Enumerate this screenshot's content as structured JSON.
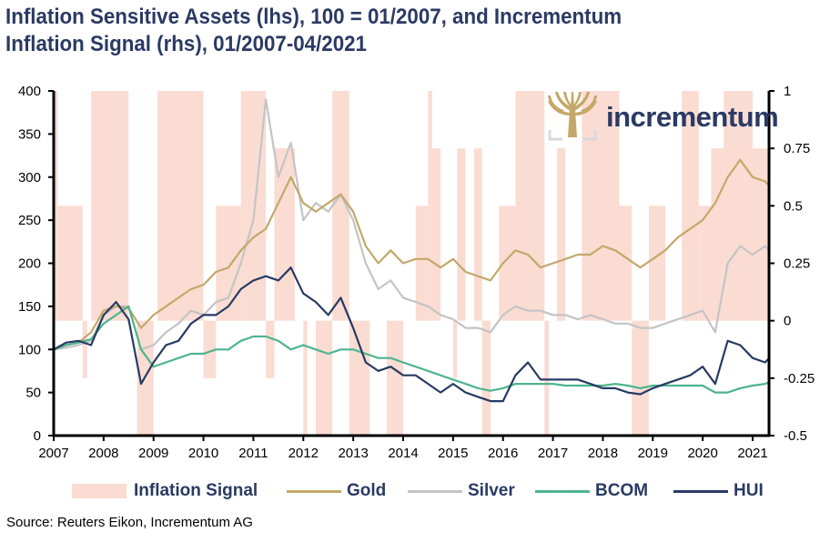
{
  "title_line1": "Inflation Sensitive Assets (lhs), 100 = 01/2007, and Incrementum",
  "title_line2": "Inflation Signal (rhs), 01/2007-04/2021",
  "logo": {
    "text": "incrementum",
    "icon": "tree-icon"
  },
  "source": "Source: Reuters Eikon, Incrementum AG",
  "colors": {
    "signal": "#fadcd3",
    "gold": "#c3a86a",
    "silver": "#c4c4c4",
    "bcom": "#4fb48e",
    "hui": "#283a64",
    "axis": "#000000"
  },
  "legend": [
    {
      "label": "Inflation Signal",
      "type": "area",
      "color": "#fadcd3"
    },
    {
      "label": "Gold",
      "type": "line",
      "color": "#c3a86a"
    },
    {
      "label": "Silver",
      "type": "line",
      "color": "#c4c4c4"
    },
    {
      "label": "BCOM",
      "type": "line",
      "color": "#4fb48e"
    },
    {
      "label": "HUI",
      "type": "line",
      "color": "#283a64"
    }
  ],
  "chart_data": {
    "type": "line",
    "title": "Inflation Sensitive Assets (lhs), 100 = 01/2007, and Incrementum Inflation Signal (rhs), 01/2007-04/2021",
    "xlabel": "",
    "ylabel_left": "",
    "ylabel_right": "",
    "x_ticks": [
      "2007",
      "2008",
      "2009",
      "2010",
      "2011",
      "2012",
      "2013",
      "2014",
      "2015",
      "2016",
      "2017",
      "2018",
      "2019",
      "2020",
      "2021"
    ],
    "xlim": [
      2007.0,
      2021.33
    ],
    "y_left": {
      "ylim": [
        0,
        400
      ],
      "ticks": [
        "0",
        "50",
        "100",
        "150",
        "200",
        "250",
        "300",
        "350",
        "400"
      ]
    },
    "y_right": {
      "ylim": [
        -0.5,
        1
      ],
      "ticks": [
        "-0.5",
        "-0.25",
        "0",
        "0.25",
        "0.5",
        "0.75",
        "1"
      ]
    },
    "grid": false,
    "legend_position": "bottom",
    "inflation_signal": {
      "axis": "right",
      "note": "step values by period [start, end, value]",
      "steps": [
        [
          2007.0,
          2007.08,
          1.0
        ],
        [
          2007.08,
          2007.58,
          0.5
        ],
        [
          2007.58,
          2007.67,
          -0.25
        ],
        [
          2007.67,
          2007.75,
          0.0
        ],
        [
          2007.75,
          2008.5,
          1.0
        ],
        [
          2008.5,
          2008.67,
          0.0
        ],
        [
          2008.67,
          2009.0,
          -0.5
        ],
        [
          2009.0,
          2009.08,
          0.0
        ],
        [
          2009.08,
          2010.0,
          1.0
        ],
        [
          2010.0,
          2010.08,
          -0.25
        ],
        [
          2010.08,
          2010.25,
          -0.25
        ],
        [
          2010.25,
          2010.75,
          0.5
        ],
        [
          2010.75,
          2011.25,
          1.0
        ],
        [
          2011.25,
          2011.42,
          -0.25
        ],
        [
          2011.42,
          2011.83,
          0.75
        ],
        [
          2011.83,
          2012.0,
          0.0
        ],
        [
          2012.0,
          2012.08,
          -0.5
        ],
        [
          2012.08,
          2012.25,
          0.0
        ],
        [
          2012.25,
          2012.58,
          -0.5
        ],
        [
          2012.58,
          2012.92,
          1.0
        ],
        [
          2012.92,
          2013.33,
          -0.5
        ],
        [
          2013.33,
          2013.67,
          0.0
        ],
        [
          2013.67,
          2014.0,
          -0.5
        ],
        [
          2014.0,
          2014.25,
          0.0
        ],
        [
          2014.25,
          2014.5,
          0.5
        ],
        [
          2014.5,
          2014.58,
          1.0
        ],
        [
          2014.58,
          2014.75,
          0.75
        ],
        [
          2014.75,
          2015.0,
          0.0
        ],
        [
          2015.0,
          2015.08,
          -0.25
        ],
        [
          2015.08,
          2015.25,
          0.75
        ],
        [
          2015.25,
          2015.42,
          0.0
        ],
        [
          2015.42,
          2015.58,
          0.75
        ],
        [
          2015.58,
          2015.75,
          -0.5
        ],
        [
          2015.75,
          2015.92,
          0.0
        ],
        [
          2015.92,
          2016.25,
          0.5
        ],
        [
          2016.25,
          2016.83,
          1.0
        ],
        [
          2016.83,
          2016.92,
          -0.5
        ],
        [
          2016.92,
          2017.08,
          0.0
        ],
        [
          2017.08,
          2017.25,
          0.75
        ],
        [
          2017.25,
          2017.58,
          0.0
        ],
        [
          2017.58,
          2018.33,
          1.0
        ],
        [
          2018.33,
          2018.58,
          0.5
        ],
        [
          2018.58,
          2018.92,
          -0.5
        ],
        [
          2018.92,
          2019.25,
          0.5
        ],
        [
          2019.25,
          2019.58,
          0.0
        ],
        [
          2019.58,
          2019.92,
          1.0
        ],
        [
          2019.92,
          2020.17,
          0.5
        ],
        [
          2020.17,
          2020.42,
          0.75
        ],
        [
          2020.42,
          2021.0,
          1.0
        ],
        [
          2021.0,
          2021.33,
          0.75
        ]
      ]
    },
    "x": [
      2007.0,
      2007.25,
      2007.5,
      2007.75,
      2008.0,
      2008.25,
      2008.5,
      2008.75,
      2009.0,
      2009.25,
      2009.5,
      2009.75,
      2010.0,
      2010.25,
      2010.5,
      2010.75,
      2011.0,
      2011.25,
      2011.5,
      2011.75,
      2012.0,
      2012.25,
      2012.5,
      2012.75,
      2013.0,
      2013.25,
      2013.5,
      2013.75,
      2014.0,
      2014.25,
      2014.5,
      2014.75,
      2015.0,
      2015.25,
      2015.5,
      2015.75,
      2016.0,
      2016.25,
      2016.5,
      2016.75,
      2017.0,
      2017.25,
      2017.5,
      2017.75,
      2018.0,
      2018.25,
      2018.5,
      2018.75,
      2019.0,
      2019.25,
      2019.5,
      2019.75,
      2020.0,
      2020.25,
      2020.5,
      2020.75,
      2021.0,
      2021.25,
      2021.33
    ],
    "series": [
      {
        "name": "Gold",
        "axis": "left",
        "values": [
          100,
          105,
          108,
          120,
          145,
          150,
          148,
          125,
          140,
          150,
          160,
          170,
          175,
          190,
          195,
          215,
          230,
          240,
          270,
          300,
          270,
          260,
          270,
          280,
          260,
          220,
          200,
          215,
          200,
          205,
          205,
          195,
          205,
          190,
          185,
          180,
          200,
          215,
          210,
          195,
          200,
          205,
          210,
          210,
          220,
          215,
          205,
          195,
          205,
          215,
          230,
          240,
          250,
          270,
          300,
          320,
          300,
          295,
          290
        ]
      },
      {
        "name": "Silver",
        "axis": "left",
        "values": [
          100,
          102,
          105,
          110,
          140,
          150,
          150,
          100,
          105,
          120,
          130,
          145,
          140,
          155,
          160,
          200,
          250,
          390,
          300,
          340,
          250,
          270,
          260,
          280,
          250,
          200,
          170,
          180,
          160,
          155,
          150,
          140,
          135,
          125,
          125,
          120,
          140,
          150,
          145,
          145,
          140,
          140,
          135,
          140,
          135,
          130,
          130,
          125,
          125,
          130,
          135,
          140,
          145,
          120,
          200,
          220,
          210,
          220,
          215
        ]
      },
      {
        "name": "BCOM",
        "axis": "left",
        "values": [
          100,
          105,
          108,
          112,
          130,
          140,
          150,
          100,
          80,
          85,
          90,
          95,
          95,
          100,
          100,
          110,
          115,
          115,
          110,
          100,
          105,
          100,
          95,
          100,
          100,
          95,
          90,
          90,
          85,
          80,
          75,
          70,
          65,
          60,
          55,
          52,
          55,
          60,
          60,
          60,
          60,
          58,
          58,
          58,
          58,
          60,
          58,
          55,
          58,
          58,
          58,
          58,
          58,
          50,
          50,
          55,
          58,
          60,
          62
        ]
      },
      {
        "name": "HUI",
        "axis": "left",
        "values": [
          100,
          108,
          110,
          105,
          140,
          155,
          135,
          60,
          85,
          105,
          110,
          130,
          140,
          140,
          150,
          170,
          180,
          185,
          180,
          195,
          165,
          155,
          140,
          160,
          125,
          85,
          75,
          80,
          70,
          70,
          60,
          50,
          60,
          50,
          45,
          40,
          40,
          70,
          85,
          65,
          65,
          65,
          65,
          60,
          55,
          55,
          50,
          48,
          55,
          60,
          65,
          70,
          80,
          60,
          110,
          105,
          90,
          85,
          90
        ]
      }
    ]
  }
}
